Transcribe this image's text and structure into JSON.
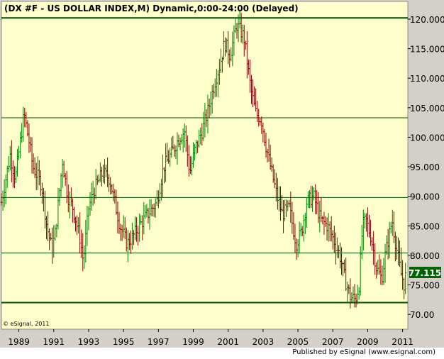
{
  "chart_data": {
    "type": "ohlc",
    "title": "(DX #F - US DOLLAR INDEX,M) Dynamic,0:00-24:00 (Delayed)",
    "xlabel": "",
    "ylabel": "",
    "x_range": [
      1988,
      2011.3
    ],
    "ylim": [
      67.5,
      123
    ],
    "y_ticks": [
      "70.00",
      "75.000",
      "80.000",
      "85.000",
      "90.000",
      "95.000",
      "100.000",
      "105.000",
      "110.000",
      "115.000",
      "120.000"
    ],
    "x_ticks": [
      "1989",
      "1991",
      "1993",
      "1995",
      "1997",
      "1999",
      "2001",
      "2003",
      "2005",
      "2007",
      "2009",
      "2011"
    ],
    "horizontal_lines": [
      120.2,
      103.3,
      89.8,
      80.4,
      72.0
    ],
    "last_value": "77.115",
    "last_value_num": 77.115,
    "anchors": [
      [
        1988.0,
        89.0
      ],
      [
        1988.5,
        97.0
      ],
      [
        1988.8,
        93.0
      ],
      [
        1989.3,
        104.0
      ],
      [
        1989.6,
        99.0
      ],
      [
        1989.8,
        95.0
      ],
      [
        1990.3,
        92.0
      ],
      [
        1990.6,
        85.0
      ],
      [
        1990.9,
        81.0
      ],
      [
        1991.1,
        84.0
      ],
      [
        1991.5,
        96.0
      ],
      [
        1991.8,
        90.0
      ],
      [
        1992.1,
        88.0
      ],
      [
        1992.5,
        83.0
      ],
      [
        1992.7,
        79.0
      ],
      [
        1993.0,
        88.0
      ],
      [
        1993.3,
        91.0
      ],
      [
        1993.8,
        94.0
      ],
      [
        1994.2,
        93.0
      ],
      [
        1994.8,
        85.0
      ],
      [
        1995.2,
        82.0
      ],
      [
        1995.5,
        83.0
      ],
      [
        1995.9,
        85.0
      ],
      [
        1996.4,
        87.0
      ],
      [
        1996.9,
        89.0
      ],
      [
        1997.3,
        95.0
      ],
      [
        1997.7,
        97.0
      ],
      [
        1998.2,
        100.0
      ],
      [
        1998.5,
        101.0
      ],
      [
        1998.8,
        94.0
      ],
      [
        1999.1,
        98.0
      ],
      [
        1999.5,
        101.0
      ],
      [
        1999.8,
        104.0
      ],
      [
        2000.2,
        109.0
      ],
      [
        2000.5,
        112.0
      ],
      [
        2000.8,
        116.0
      ],
      [
        2001.1,
        114.0
      ],
      [
        2001.5,
        119.0
      ],
      [
        2001.9,
        117.0
      ],
      [
        2002.3,
        108.0
      ],
      [
        2002.6,
        104.0
      ],
      [
        2002.9,
        103.0
      ],
      [
        2003.2,
        98.0
      ],
      [
        2003.5,
        94.0
      ],
      [
        2003.8,
        90.0
      ],
      [
        2004.1,
        87.0
      ],
      [
        2004.5,
        88.0
      ],
      [
        2004.9,
        82.0
      ],
      [
        2005.2,
        84.0
      ],
      [
        2005.5,
        89.0
      ],
      [
        2005.9,
        90.0
      ],
      [
        2006.3,
        86.0
      ],
      [
        2006.7,
        85.0
      ],
      [
        2007.0,
        83.0
      ],
      [
        2007.4,
        80.0
      ],
      [
        2007.7,
        76.0
      ],
      [
        2008.0,
        73.0
      ],
      [
        2008.3,
        72.5
      ],
      [
        2008.5,
        75.0
      ],
      [
        2008.7,
        85.0
      ],
      [
        2008.9,
        86.0
      ],
      [
        2009.2,
        83.0
      ],
      [
        2009.5,
        78.0
      ],
      [
        2009.8,
        76.0
      ],
      [
        2010.0,
        80.0
      ],
      [
        2010.4,
        86.0
      ],
      [
        2010.6,
        82.0
      ],
      [
        2010.9,
        77.0
      ],
      [
        2011.1,
        75.0
      ],
      [
        2011.2,
        77.1
      ]
    ],
    "up_color": "#008000",
    "down_color": "#8b0000",
    "background_color": "#ffffcc"
  },
  "watermark": "© eSignal, 2011",
  "footer": "Published by eSignal (www.esignal.com)",
  "colors": {
    "panel": "#d4d0c8",
    "axis_text": "#000000",
    "line_color": "#004d00",
    "last_value_bg": "#006400"
  }
}
